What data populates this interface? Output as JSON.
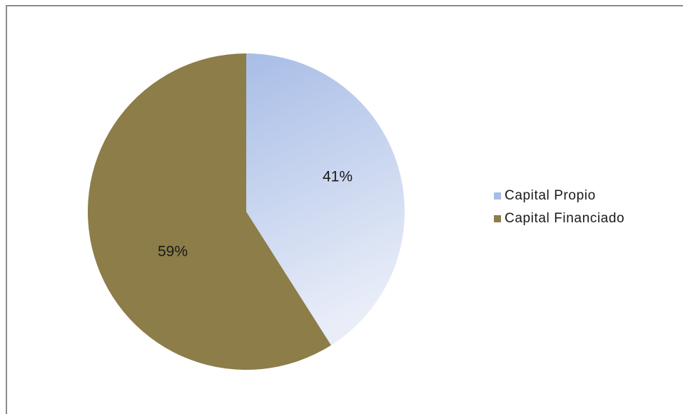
{
  "chart_data": {
    "type": "pie",
    "categories": [
      "Capital Propio",
      "Capital Financiado"
    ],
    "values": [
      41,
      59
    ],
    "data_labels": [
      "41%",
      "59%"
    ],
    "start_angle_deg": 0,
    "direction": "clockwise",
    "legend_position": "right",
    "colors": [
      "#a8bde6",
      "#8c7d49"
    ],
    "gradient_light": "#e8edf8"
  }
}
